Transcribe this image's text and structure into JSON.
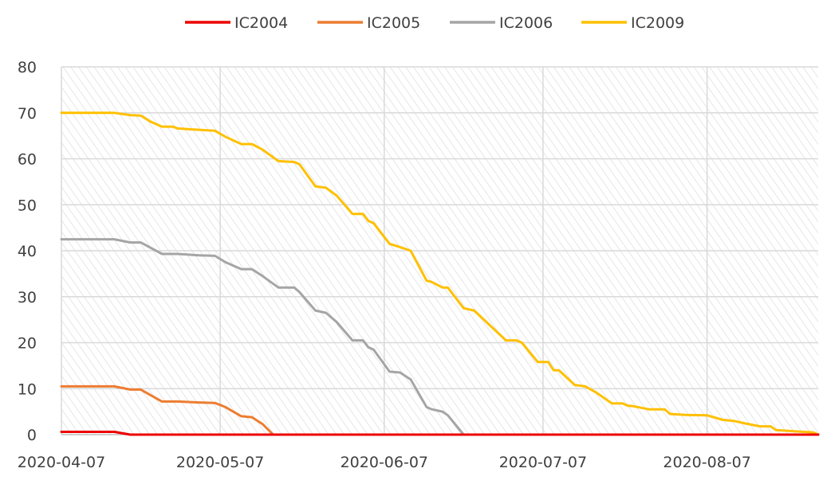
{
  "chart_data": {
    "type": "line",
    "title": "",
    "xlabel": "",
    "ylabel": "",
    "ylim": [
      0,
      80
    ],
    "y_ticks": [
      "0",
      "10",
      "20",
      "30",
      "40",
      "50",
      "60",
      "70",
      "80"
    ],
    "x_ticks": [
      "2020-04-07",
      "2020-05-07",
      "2020-06-07",
      "2020-07-07",
      "2020-08-07"
    ],
    "grid": true,
    "legend_position": "top-center",
    "series": [
      {
        "name": "IC2004",
        "color": "#ee0000",
        "points": [
          [
            "2020-04-07",
            0.6
          ],
          [
            "2020-04-17",
            0.6
          ],
          [
            "2020-04-20",
            0
          ]
        ]
      },
      {
        "name": "IC2005",
        "color": "#ed7d31",
        "points": [
          [
            "2020-04-07",
            10.5
          ],
          [
            "2020-04-17",
            10.5
          ],
          [
            "2020-04-20",
            9.8
          ],
          [
            "2020-04-22",
            9.8
          ],
          [
            "2020-04-26",
            7.2
          ],
          [
            "2020-04-29",
            7.2
          ],
          [
            "2020-05-03",
            7.0
          ],
          [
            "2020-05-06",
            6.9
          ],
          [
            "2020-05-08",
            6.0
          ],
          [
            "2020-05-11",
            4.0
          ],
          [
            "2020-05-13",
            3.8
          ],
          [
            "2020-05-15",
            2.3
          ],
          [
            "2020-05-17",
            0
          ]
        ]
      },
      {
        "name": "IC2006",
        "color": "#a5a5a5",
        "points": [
          [
            "2020-04-07",
            42.5
          ],
          [
            "2020-04-17",
            42.5
          ],
          [
            "2020-04-20",
            41.8
          ],
          [
            "2020-04-22",
            41.8
          ],
          [
            "2020-04-26",
            39.3
          ],
          [
            "2020-04-29",
            39.3
          ],
          [
            "2020-05-03",
            39.0
          ],
          [
            "2020-05-06",
            38.9
          ],
          [
            "2020-05-08",
            37.5
          ],
          [
            "2020-05-11",
            36.0
          ],
          [
            "2020-05-13",
            36.0
          ],
          [
            "2020-05-15",
            34.5
          ],
          [
            "2020-05-18",
            32.0
          ],
          [
            "2020-05-21",
            32.0
          ],
          [
            "2020-05-22",
            31.0
          ],
          [
            "2020-05-25",
            27.0
          ],
          [
            "2020-05-27",
            26.5
          ],
          [
            "2020-05-29",
            24.5
          ],
          [
            "2020-06-01",
            20.5
          ],
          [
            "2020-06-03",
            20.5
          ],
          [
            "2020-06-04",
            19.0
          ],
          [
            "2020-06-05",
            18.5
          ],
          [
            "2020-06-08",
            13.7
          ],
          [
            "2020-06-10",
            13.5
          ],
          [
            "2020-06-12",
            12.0
          ],
          [
            "2020-06-15",
            6.0
          ],
          [
            "2020-06-16",
            5.5
          ],
          [
            "2020-06-18",
            5.0
          ],
          [
            "2020-06-19",
            4.2
          ],
          [
            "2020-06-22",
            0
          ]
        ]
      },
      {
        "name": "IC2009",
        "color": "#ffc000",
        "points": [
          [
            "2020-04-07",
            70.0
          ],
          [
            "2020-04-17",
            70.0
          ],
          [
            "2020-04-20",
            69.5
          ],
          [
            "2020-04-22",
            69.4
          ],
          [
            "2020-04-24",
            68.0
          ],
          [
            "2020-04-26",
            67.0
          ],
          [
            "2020-04-28",
            67.0
          ],
          [
            "2020-04-29",
            66.6
          ],
          [
            "2020-05-03",
            66.3
          ],
          [
            "2020-05-06",
            66.1
          ],
          [
            "2020-05-08",
            64.8
          ],
          [
            "2020-05-11",
            63.2
          ],
          [
            "2020-05-13",
            63.2
          ],
          [
            "2020-05-15",
            62.0
          ],
          [
            "2020-05-18",
            59.5
          ],
          [
            "2020-05-21",
            59.3
          ],
          [
            "2020-05-22",
            58.8
          ],
          [
            "2020-05-25",
            54.0
          ],
          [
            "2020-05-27",
            53.7
          ],
          [
            "2020-05-29",
            52.0
          ],
          [
            "2020-06-01",
            48.0
          ],
          [
            "2020-06-03",
            48.0
          ],
          [
            "2020-06-04",
            46.5
          ],
          [
            "2020-06-05",
            46.0
          ],
          [
            "2020-06-08",
            41.5
          ],
          [
            "2020-06-10",
            40.8
          ],
          [
            "2020-06-12",
            40.0
          ],
          [
            "2020-06-15",
            33.5
          ],
          [
            "2020-06-16",
            33.2
          ],
          [
            "2020-06-18",
            32.0
          ],
          [
            "2020-06-19",
            32.0
          ],
          [
            "2020-06-22",
            27.5
          ],
          [
            "2020-06-24",
            27.0
          ],
          [
            "2020-06-30",
            20.5
          ],
          [
            "2020-07-02",
            20.5
          ],
          [
            "2020-07-03",
            20.0
          ],
          [
            "2020-07-06",
            15.8
          ],
          [
            "2020-07-08",
            15.8
          ],
          [
            "2020-07-09",
            14.0
          ],
          [
            "2020-07-10",
            14.0
          ],
          [
            "2020-07-13",
            10.8
          ],
          [
            "2020-07-15",
            10.5
          ],
          [
            "2020-07-17",
            9.2
          ],
          [
            "2020-07-20",
            6.8
          ],
          [
            "2020-07-22",
            6.8
          ],
          [
            "2020-07-23",
            6.3
          ],
          [
            "2020-07-24",
            6.2
          ],
          [
            "2020-07-27",
            5.5
          ],
          [
            "2020-07-30",
            5.5
          ],
          [
            "2020-07-31",
            4.5
          ],
          [
            "2020-08-03",
            4.3
          ],
          [
            "2020-08-07",
            4.2
          ],
          [
            "2020-08-10",
            3.2
          ],
          [
            "2020-08-12",
            3.0
          ],
          [
            "2020-08-14",
            2.5
          ],
          [
            "2020-08-17",
            1.8
          ],
          [
            "2020-08-19",
            1.8
          ],
          [
            "2020-08-20",
            1.0
          ],
          [
            "2020-08-24",
            0.7
          ],
          [
            "2020-08-27",
            0.5
          ],
          [
            "2020-08-28",
            0
          ]
        ]
      }
    ]
  }
}
